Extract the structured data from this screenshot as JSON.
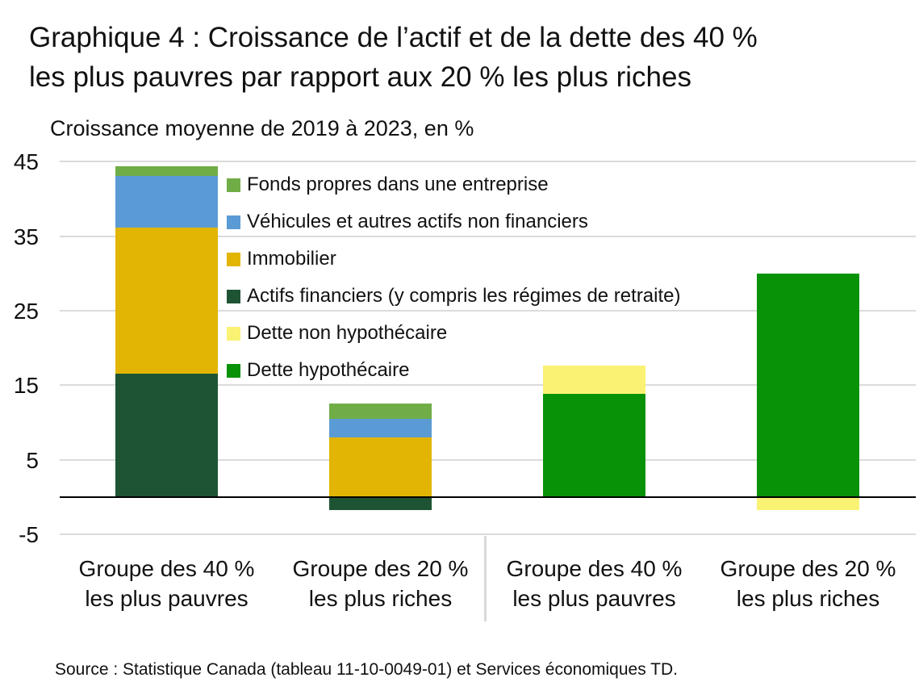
{
  "title": {
    "line1": "Graphique 4 : Croissance de l’actif et de la dette des 40 %",
    "line2": "les plus pauvres par rapport aux 20 % les plus riches"
  },
  "subtitle": "Croissance moyenne de 2019 à 2023, en %",
  "source": "Source : Statistique Canada (tableau 11-10-0049-01) et Services économiques TD.",
  "chart_data": {
    "type": "bar",
    "stacked": true,
    "title": "Graphique 4 : Croissance de l’actif et de la dette des 40 % les plus pauvres par rapport aux 20 % les plus riches",
    "ylabel": "Croissance moyenne de 2019 à 2023, en %",
    "ylim": [
      -5,
      47
    ],
    "y_ticks": [
      45,
      35,
      25,
      15,
      5,
      -5
    ],
    "grid": "horizontal",
    "zero_line": true,
    "legend_position": "inside-top-left-of-plot",
    "colors": {
      "fonds_propres": "#70AD47",
      "vehicules": "#5B9BD5",
      "immobilier": "#E2B504",
      "actifs_financiers": "#1E5434",
      "dette_non_hypothecaire": "#FAF273",
      "dette_hypothecaire": "#089208"
    },
    "legend": [
      {
        "key": "fonds_propres",
        "label": "Fonds propres dans une entreprise"
      },
      {
        "key": "vehicules",
        "label": "Véhicules et autres actifs non financiers"
      },
      {
        "key": "immobilier",
        "label": "Immobilier"
      },
      {
        "key": "actifs_financiers",
        "label": "Actifs financiers (y compris les régimes de retraite)"
      },
      {
        "key": "dette_non_hypothecaire",
        "label": "Dette non hypothécaire"
      },
      {
        "key": "dette_hypothecaire",
        "label": "Dette hypothécaire"
      }
    ],
    "categories": [
      {
        "line1": "Groupe des 40 %",
        "line2": "les plus pauvres"
      },
      {
        "line1": "Groupe des 20 %",
        "line2": "les plus riches"
      },
      {
        "line1": "Groupe des 40 %",
        "line2": "les plus pauvres"
      },
      {
        "line1": "Groupe des 20 %",
        "line2": "les plus riches"
      }
    ],
    "bars": [
      {
        "category": "Groupe des 40 % les plus pauvres (actif)",
        "segments": [
          {
            "key": "actifs_financiers",
            "value": 16.6
          },
          {
            "key": "immobilier",
            "value": 19.6
          },
          {
            "key": "vehicules",
            "value": 6.9
          },
          {
            "key": "fonds_propres",
            "value": 1.3
          }
        ]
      },
      {
        "category": "Groupe des 20 % les plus riches (actif)",
        "segments": [
          {
            "key": "actifs_financiers",
            "value": -1.7
          },
          {
            "key": "immobilier",
            "value": 8.0
          },
          {
            "key": "vehicules",
            "value": 2.5
          },
          {
            "key": "fonds_propres",
            "value": 2.1
          }
        ]
      },
      {
        "category": "Groupe des 40 % les plus pauvres (dette)",
        "segments": [
          {
            "key": "dette_hypothecaire",
            "value": 13.9
          },
          {
            "key": "dette_non_hypothecaire",
            "value": 3.7
          }
        ]
      },
      {
        "category": "Groupe des 20 % les plus riches (dette)",
        "segments": [
          {
            "key": "dette_hypothecaire",
            "value": 30.0
          },
          {
            "key": "dette_non_hypothecaire",
            "value": -1.7
          }
        ]
      }
    ]
  }
}
